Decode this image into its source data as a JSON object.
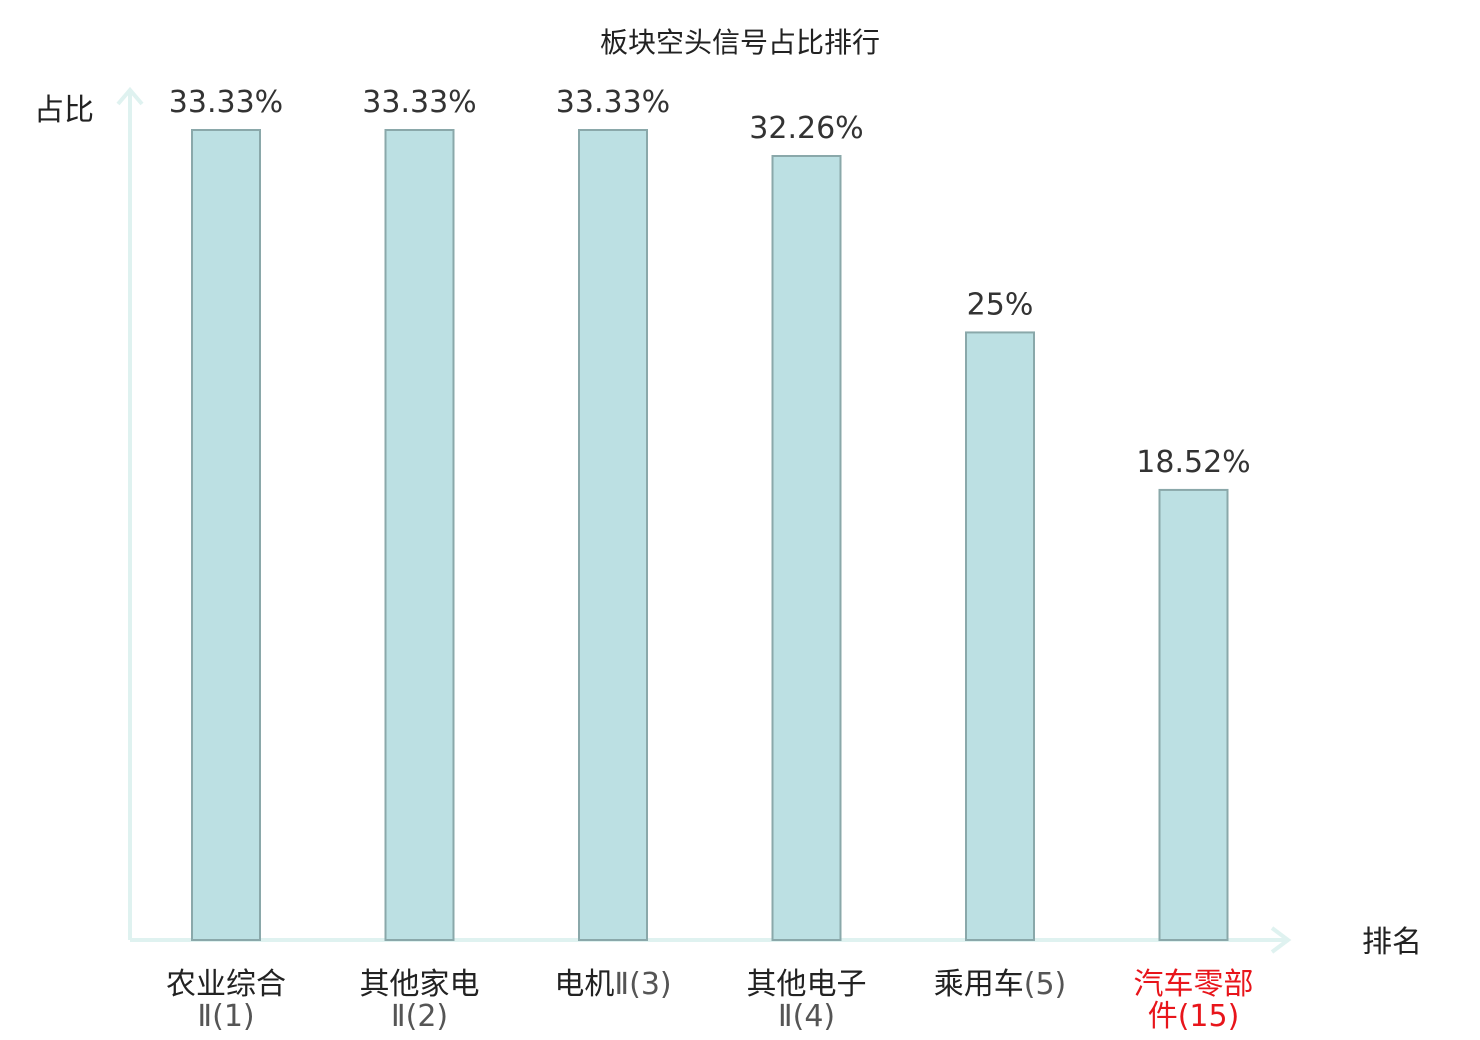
{
  "chart_data": {
    "type": "bar",
    "title": "板块空头信号占比排行",
    "ylabel": "占比",
    "xlabel": "排名",
    "ylim": [
      0,
      35
    ],
    "grid": false,
    "categories": [
      {
        "name": "农业综合",
        "suffix": "Ⅱ(1)",
        "highlight": false
      },
      {
        "name": "其他家电",
        "suffix": "Ⅱ(2)",
        "highlight": false
      },
      {
        "name": "电机",
        "suffix": "Ⅱ(3)",
        "highlight": false
      },
      {
        "name": "其他电子",
        "suffix": "Ⅱ(4)",
        "highlight": false
      },
      {
        "name": "乘用车",
        "suffix": "(5)",
        "highlight": false
      },
      {
        "name": "汽车零部件",
        "suffix": "(15)",
        "highlight": true
      }
    ],
    "values": [
      33.33,
      33.33,
      33.33,
      32.26,
      25,
      18.52
    ],
    "value_labels": [
      "33.33%",
      "33.33%",
      "33.33%",
      "32.26%",
      "25%",
      "18.52%"
    ]
  },
  "colors": {
    "bar_fill": "#bce0e3",
    "bar_stroke": "#8aa8aa",
    "axis": "#dff2f0",
    "text": "#222222",
    "value_text": "#333333",
    "suffix_text": "#555555",
    "highlight": "#e8151b"
  }
}
